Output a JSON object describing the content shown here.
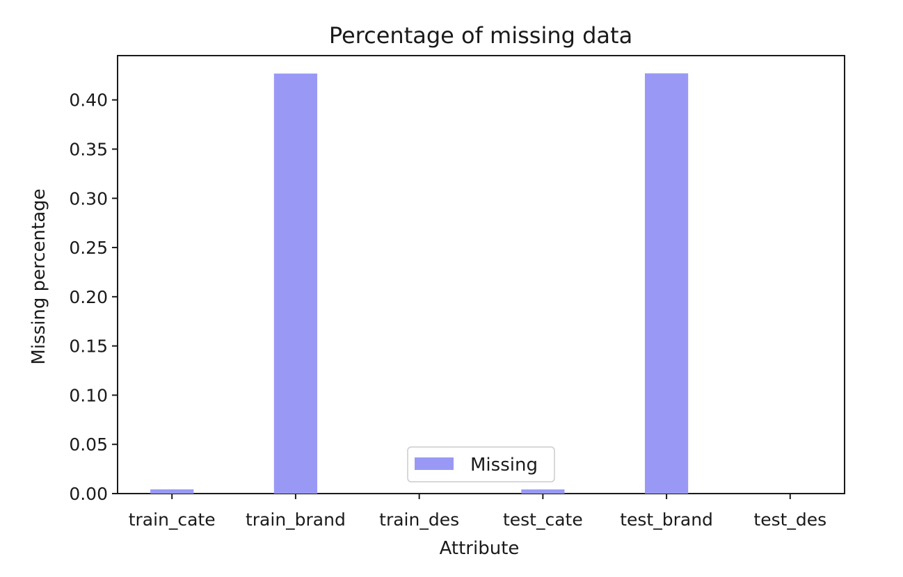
{
  "chart_data": {
    "type": "bar",
    "title": "Percentage of missing data",
    "xlabel": "Attribute",
    "ylabel": "Missing percentage",
    "categories": [
      "train_cate",
      "train_brand",
      "train_des",
      "test_cate",
      "test_brand",
      "test_des"
    ],
    "series": [
      {
        "name": "Missing",
        "values": [
          0.0043,
          0.4268,
          0.0,
          0.0042,
          0.427,
          0.0
        ]
      }
    ],
    "ylim": [
      0,
      0.445
    ],
    "yticks": [
      0.0,
      0.05,
      0.1,
      0.15,
      0.2,
      0.25,
      0.3,
      0.35,
      0.4
    ],
    "ytick_labels": [
      "0.00",
      "0.05",
      "0.10",
      "0.15",
      "0.20",
      "0.25",
      "0.30",
      "0.35",
      "0.40"
    ],
    "grid": false,
    "legend_position": "bottom-center",
    "bar_color": "#9999f5"
  }
}
